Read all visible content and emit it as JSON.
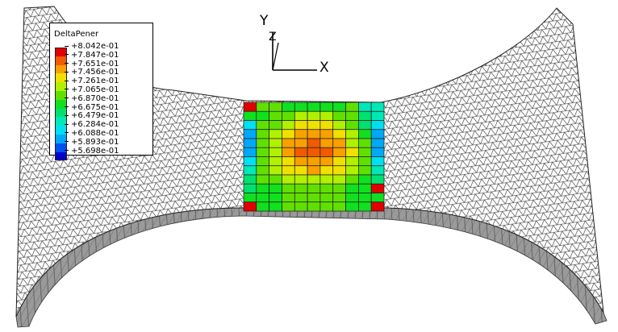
{
  "legend": {
    "title": "DeltaPener",
    "entries": [
      {
        "label": "+8.042e-01",
        "color": "#e00000"
      },
      {
        "label": "+7.847e-01",
        "color": "#f05a00"
      },
      {
        "label": "+7.651e-01",
        "color": "#f8a000"
      },
      {
        "label": "+7.456e-01",
        "color": "#f0e000"
      },
      {
        "label": "+7.261e-01",
        "color": "#b0f000"
      },
      {
        "label": "+7.065e-01",
        "color": "#60e000"
      },
      {
        "label": "+6.870e-01",
        "color": "#10e020"
      },
      {
        "label": "+6.675e-01",
        "color": "#00e070"
      },
      {
        "label": "+6.479e-01",
        "color": "#00e8b8"
      },
      {
        "label": "+6.284e-01",
        "color": "#00e0f0"
      },
      {
        "label": "+6.088e-01",
        "color": "#00a8f8"
      },
      {
        "label": "+5.893e-01",
        "color": "#0050f0"
      },
      {
        "label": "+5.698e-01",
        "color": "#0000c8"
      }
    ]
  },
  "triad": {
    "y_label": "Y",
    "z_label": "Z",
    "x_label": "X"
  },
  "colors": {
    "mesh_line": "#2a2a2a",
    "surface": "#ffffff",
    "side": "#8a8a8a"
  },
  "contour_grid": {
    "rows": 12,
    "cols": 11,
    "values": [
      [
        0.79,
        0.7,
        0.69,
        0.68,
        0.675,
        0.672,
        0.675,
        0.68,
        0.69,
        0.642,
        0.632
      ],
      [
        0.67,
        0.685,
        0.695,
        0.705,
        0.71,
        0.712,
        0.71,
        0.705,
        0.695,
        0.65,
        0.64
      ],
      [
        0.625,
        0.69,
        0.705,
        0.72,
        0.73,
        0.735,
        0.73,
        0.72,
        0.705,
        0.66,
        0.62
      ],
      [
        0.6,
        0.695,
        0.715,
        0.735,
        0.75,
        0.755,
        0.75,
        0.735,
        0.715,
        0.68,
        0.605
      ],
      [
        0.6,
        0.7,
        0.725,
        0.75,
        0.765,
        0.77,
        0.765,
        0.75,
        0.725,
        0.69,
        0.6
      ],
      [
        0.605,
        0.7,
        0.725,
        0.75,
        0.768,
        0.772,
        0.768,
        0.752,
        0.728,
        0.692,
        0.605
      ],
      [
        0.62,
        0.7,
        0.722,
        0.745,
        0.76,
        0.765,
        0.76,
        0.745,
        0.722,
        0.692,
        0.62
      ],
      [
        0.645,
        0.698,
        0.715,
        0.735,
        0.745,
        0.748,
        0.745,
        0.735,
        0.715,
        0.69,
        0.64
      ],
      [
        0.65,
        0.688,
        0.7,
        0.712,
        0.72,
        0.722,
        0.72,
        0.712,
        0.7,
        0.682,
        0.655
      ],
      [
        0.65,
        0.675,
        0.682,
        0.69,
        0.695,
        0.697,
        0.695,
        0.69,
        0.682,
        0.678,
        0.79
      ],
      [
        0.672,
        0.678,
        0.682,
        0.688,
        0.69,
        0.69,
        0.69,
        0.688,
        0.682,
        0.678,
        0.672
      ],
      [
        0.8,
        0.68,
        0.685,
        0.688,
        0.69,
        0.69,
        0.69,
        0.688,
        0.685,
        0.68,
        0.79
      ]
    ]
  }
}
